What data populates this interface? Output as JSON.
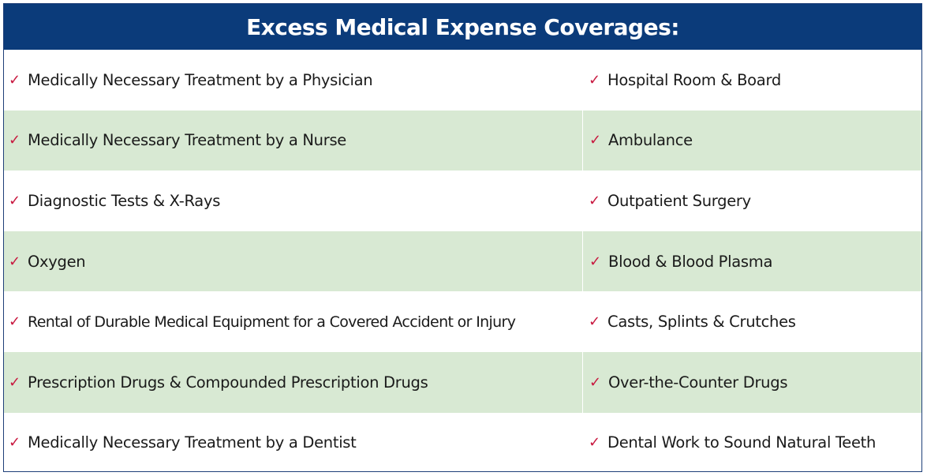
{
  "title": "Excess Medical Expense Coverages:",
  "check_glyph": "✓",
  "colors": {
    "header_bg": "#0b3b7a",
    "shaded_row": "#d8e9d3",
    "check": "#c8183f"
  },
  "rows": [
    {
      "left": "Medically Necessary Treatment by a Physician",
      "right": "Hospital Room & Board"
    },
    {
      "left": "Medically Necessary Treatment by a Nurse",
      "right": "Ambulance"
    },
    {
      "left": "Diagnostic Tests & X-Rays",
      "right": "Outpatient Surgery"
    },
    {
      "left": "Oxygen",
      "right": "Blood & Blood Plasma"
    },
    {
      "left": "Rental of Durable Medical Equipment for a Covered Accident or Injury",
      "right": "Casts, Splints & Crutches"
    },
    {
      "left": "Prescription Drugs & Compounded Prescription Drugs",
      "right": "Over-the-Counter Drugs"
    },
    {
      "left": "Medically Necessary Treatment by a Dentist",
      "right": "Dental Work to Sound Natural Teeth"
    }
  ]
}
